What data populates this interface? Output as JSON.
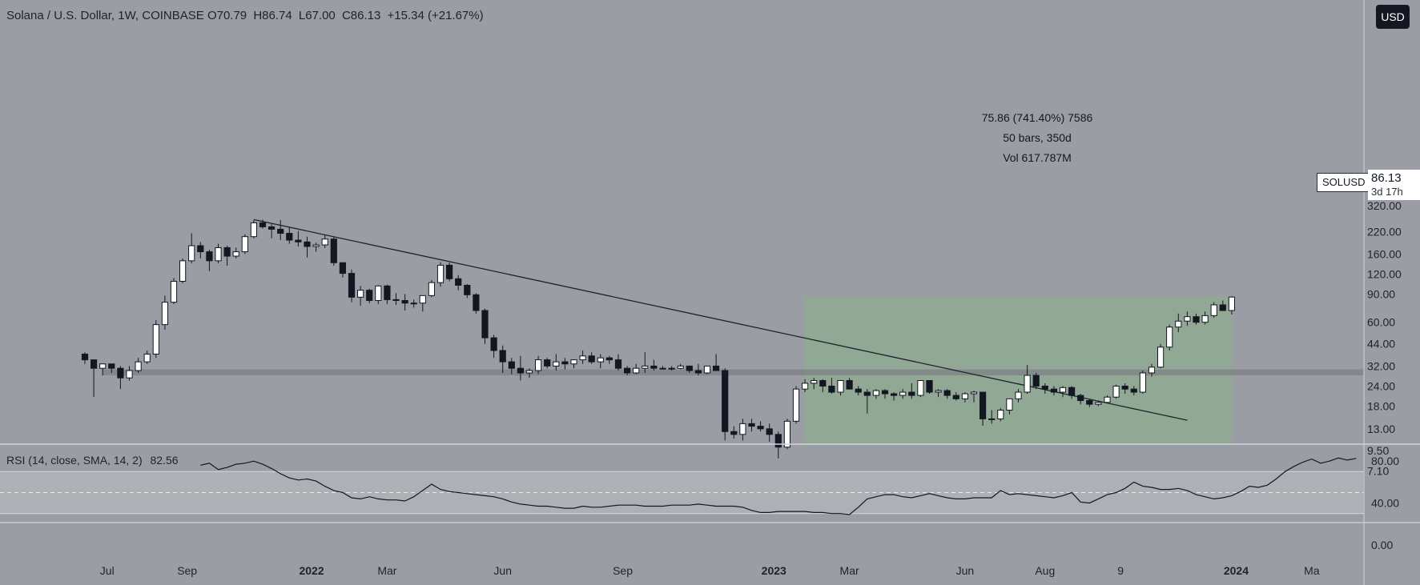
{
  "header": {
    "symbol": "Solana / U.S. Dollar, 1W, COINBASE",
    "open_label": "O",
    "open": "70.79",
    "high_label": "H",
    "high": "86.74",
    "low_label": "L",
    "low": "67.00",
    "close_label": "C",
    "close": "86.13",
    "change": "+15.34 (+21.67%)"
  },
  "currency_button": "USD",
  "measure": {
    "line1": "75.86 (741.40%) 7586",
    "line2": "50 bars, 350d",
    "line3": "Vol 617.787M"
  },
  "symbol_tag": "SOLUSD",
  "price_tag": {
    "price": "86.13",
    "countdown": "3d 17h"
  },
  "rsi_header": {
    "label": "RSI (14, close, SMA, 14, 2)",
    "value": "82.56"
  },
  "colors": {
    "background": "#9a9da3",
    "up_candle": "#ffffff",
    "down_candle": "#131722",
    "green_zone": "#8fac92",
    "support_zone": "#7f8287",
    "rsi_band": "#b4b7bc"
  },
  "chart_data": [
    {
      "type": "candlestick",
      "title": "Solana / U.S. Dollar, 1W, COINBASE",
      "y_scale": "log",
      "y_ticks": [
        "320.00",
        "220.00",
        "160.00",
        "120.00",
        "90.00",
        "60.00",
        "44.00",
        "32.00",
        "24.00",
        "18.00",
        "13.00",
        "9.50",
        "7.10"
      ],
      "y_tick_values": [
        320,
        220,
        160,
        120,
        90,
        60,
        44,
        32,
        24,
        18,
        13,
        9.5,
        7.1
      ],
      "x_ticks": [
        {
          "label": "Jul",
          "bold": false,
          "bar": 2.5
        },
        {
          "label": "Sep",
          "bold": false,
          "bar": 11.5
        },
        {
          "label": "2022",
          "bold": true,
          "bar": 25.5
        },
        {
          "label": "Mar",
          "bold": false,
          "bar": 34
        },
        {
          "label": "Jun",
          "bold": false,
          "bar": 47
        },
        {
          "label": "Sep",
          "bold": false,
          "bar": 60.5
        },
        {
          "label": "2023",
          "bold": true,
          "bar": 77.5
        },
        {
          "label": "Mar",
          "bold": false,
          "bar": 86
        },
        {
          "label": "Jun",
          "bold": false,
          "bar": 99
        },
        {
          "label": "Aug",
          "bold": false,
          "bar": 108
        },
        {
          "label": "9",
          "bold": false,
          "bar": 116.5
        },
        {
          "label": "2024",
          "bold": true,
          "bar": 129.5
        },
        {
          "label": "Ma",
          "bold": false,
          "bar": 138
        }
      ],
      "ohlc": [
        [
          38,
          39,
          33,
          35
        ],
        [
          35,
          35,
          20.5,
          31
        ],
        [
          31,
          33,
          28,
          33
        ],
        [
          33,
          33,
          29,
          31
        ],
        [
          31,
          32,
          23,
          27
        ],
        [
          27,
          32,
          26,
          30
        ],
        [
          30,
          36,
          29,
          34
        ],
        [
          34,
          40,
          33,
          38
        ],
        [
          38,
          62,
          36,
          58
        ],
        [
          58,
          88,
          54,
          80
        ],
        [
          80,
          113,
          78,
          108
        ],
        [
          108,
          150,
          105,
          145
        ],
        [
          145,
          215,
          140,
          180
        ],
        [
          180,
          190,
          150,
          165
        ],
        [
          165,
          170,
          125,
          145
        ],
        [
          145,
          185,
          140,
          175
        ],
        [
          175,
          180,
          135,
          155
        ],
        [
          155,
          175,
          150,
          165
        ],
        [
          165,
          212,
          160,
          205
        ],
        [
          205,
          260,
          200,
          250
        ],
        [
          250,
          262,
          230,
          236
        ],
        [
          236,
          245,
          200,
          228
        ],
        [
          228,
          260,
          195,
          215
        ],
        [
          215,
          235,
          185,
          195
        ],
        [
          195,
          222,
          178,
          190
        ],
        [
          190,
          205,
          152,
          178
        ],
        [
          178,
          188,
          165,
          182
        ],
        [
          182,
          210,
          174,
          198
        ],
        [
          198,
          203,
          135,
          141
        ],
        [
          141,
          142,
          114,
          121
        ],
        [
          121,
          128,
          80,
          86
        ],
        [
          86,
          101,
          76,
          95
        ],
        [
          95,
          97,
          79,
          82
        ],
        [
          82,
          102,
          78,
          101
        ],
        [
          101,
          103,
          78,
          83
        ],
        [
          83,
          91,
          77,
          82
        ],
        [
          82,
          90,
          71,
          79
        ],
        [
          79,
          83,
          74,
          79
        ],
        [
          79,
          86,
          70,
          88
        ],
        [
          88,
          110,
          86,
          106
        ],
        [
          106,
          142,
          100,
          136
        ],
        [
          136,
          141,
          108,
          112
        ],
        [
          112,
          118,
          95,
          102
        ],
        [
          102,
          104,
          85,
          89
        ],
        [
          89,
          91,
          68,
          71
        ],
        [
          71,
          73,
          44,
          48
        ],
        [
          48,
          50,
          36,
          40
        ],
        [
          40,
          43,
          29,
          34
        ],
        [
          34,
          36,
          28.5,
          31
        ],
        [
          31,
          37,
          26,
          29
        ],
        [
          29,
          31,
          27,
          30
        ],
        [
          30,
          37,
          28.5,
          35
        ],
        [
          35,
          36,
          31,
          32
        ],
        [
          32,
          38,
          30,
          34
        ],
        [
          34,
          36,
          30.5,
          33
        ],
        [
          33,
          35,
          31,
          35
        ],
        [
          35,
          40,
          33,
          37
        ],
        [
          37,
          39,
          33,
          34
        ],
        [
          34,
          38,
          31,
          36
        ],
        [
          36,
          37,
          33,
          35
        ],
        [
          35,
          38,
          30,
          31
        ],
        [
          31,
          32,
          28,
          29
        ],
        [
          29,
          33,
          28.5,
          31
        ],
        [
          31,
          39,
          29,
          32
        ],
        [
          32,
          35,
          30,
          31
        ],
        [
          31,
          32,
          30.5,
          31
        ],
        [
          31,
          32,
          30,
          31
        ],
        [
          31,
          33,
          30.5,
          32
        ],
        [
          32,
          32,
          29,
          30
        ],
        [
          30,
          33,
          28,
          29
        ],
        [
          29,
          32,
          28.5,
          32
        ],
        [
          32,
          38,
          30,
          30
        ],
        [
          30,
          31,
          11,
          12.5
        ],
        [
          12.5,
          13.5,
          11.3,
          12
        ],
        [
          12,
          15,
          11,
          14
        ],
        [
          14,
          15,
          12.5,
          13.5
        ],
        [
          13.5,
          14.5,
          12.5,
          13
        ],
        [
          13,
          14,
          10.8,
          12
        ],
        [
          12,
          12.5,
          8.5,
          10
        ],
        [
          10,
          15,
          9.7,
          14.5
        ],
        [
          14.5,
          24,
          14,
          23
        ],
        [
          23,
          26.5,
          22,
          25
        ],
        [
          25,
          27,
          23,
          26
        ],
        [
          26,
          26.5,
          22,
          24
        ],
        [
          24,
          27,
          21.5,
          22
        ],
        [
          22,
          26,
          21,
          26
        ],
        [
          26,
          27,
          23,
          23
        ],
        [
          23,
          24,
          21,
          22
        ],
        [
          22,
          23,
          16.2,
          21
        ],
        [
          21,
          23,
          20,
          22.5
        ],
        [
          22.5,
          23,
          20,
          21.5
        ],
        [
          21.5,
          22,
          19.5,
          21
        ],
        [
          21,
          23,
          20,
          22
        ],
        [
          22,
          25,
          20,
          21
        ],
        [
          21,
          26,
          20.5,
          26
        ],
        [
          26,
          26,
          21.5,
          22
        ],
        [
          22,
          23,
          20.5,
          22.5
        ],
        [
          22.5,
          23,
          20,
          21
        ],
        [
          21,
          22,
          19.5,
          20
        ],
        [
          20,
          22,
          19,
          21.5
        ],
        [
          21.5,
          22.5,
          19,
          22
        ],
        [
          22,
          22,
          13.6,
          15
        ],
        [
          15,
          17,
          14,
          15
        ],
        [
          15,
          17.5,
          14.5,
          17
        ],
        [
          17,
          20,
          16,
          20
        ],
        [
          20,
          23,
          19,
          22
        ],
        [
          22,
          32.5,
          21.5,
          28
        ],
        [
          28,
          29,
          23,
          24
        ],
        [
          24,
          25,
          21.5,
          23
        ],
        [
          23,
          24,
          21,
          22
        ],
        [
          22,
          24,
          20.5,
          23.5
        ],
        [
          23.5,
          24,
          20,
          21
        ],
        [
          21,
          21.5,
          18.5,
          19.5
        ],
        [
          19.5,
          20,
          17.8,
          18.5
        ],
        [
          18.5,
          19.5,
          18,
          19
        ],
        [
          19,
          21,
          18.8,
          20.5
        ],
        [
          20.5,
          24.5,
          20,
          24
        ],
        [
          24,
          25,
          21.5,
          23
        ],
        [
          23,
          24,
          21,
          22
        ],
        [
          22,
          30,
          21.5,
          29
        ],
        [
          29,
          33,
          27.5,
          31.5
        ],
        [
          31.5,
          44,
          31,
          42
        ],
        [
          42,
          58,
          40,
          56
        ],
        [
          56,
          68,
          52,
          61
        ],
        [
          61,
          70,
          57,
          65
        ],
        [
          65,
          68,
          58,
          60
        ],
        [
          60,
          70,
          58,
          66
        ],
        [
          66,
          80,
          64,
          77
        ],
        [
          77,
          82,
          72,
          71
        ],
        [
          71,
          87,
          67,
          86.13
        ]
      ]
    },
    {
      "type": "line",
      "title": "RSI (14, close, SMA, 14, 2)",
      "y_ticks": [
        "80.00",
        "40.00",
        "0.00"
      ],
      "y_tick_values": [
        80,
        40,
        0
      ],
      "band": [
        30,
        70
      ],
      "midline": 50,
      "rsi_start_bar": 13,
      "values": [
        76,
        78,
        72,
        74,
        77,
        78,
        80,
        77,
        73,
        68,
        64,
        62,
        63,
        61,
        56,
        52,
        50,
        45,
        44,
        46,
        44,
        43,
        43,
        42,
        46,
        52,
        58,
        53,
        51,
        50,
        49,
        48,
        47,
        46,
        44,
        41,
        39,
        38,
        37,
        37,
        36,
        35,
        35,
        37,
        36,
        36,
        37,
        38,
        38,
        38,
        37,
        37,
        37,
        38,
        38,
        38,
        39,
        38,
        37,
        37,
        37,
        36,
        33,
        31,
        31,
        32,
        32,
        32,
        32,
        31,
        31,
        30,
        30,
        29,
        36,
        44,
        46,
        48,
        48,
        46,
        45,
        47,
        49,
        47,
        45,
        44,
        44,
        45,
        45,
        45,
        52,
        48,
        49,
        48,
        47,
        46,
        45,
        47,
        50,
        41,
        40,
        44,
        48,
        50,
        54,
        60,
        56,
        55,
        53,
        53,
        54,
        52,
        48,
        46,
        44,
        45,
        47,
        51,
        56,
        55,
        57,
        63,
        70,
        75,
        79,
        82,
        78,
        80,
        83,
        81,
        82.56
      ],
      "last_value": 82.56
    }
  ],
  "trendline": {
    "from": {
      "bar": 19,
      "price": 262
    },
    "to": {
      "bar": 124,
      "price": 14.7
    }
  },
  "green_zone": {
    "from_bar": 81,
    "to_bar": 129,
    "low": 10.3,
    "high": 86.74
  },
  "support_zone": {
    "low": 28,
    "high": 30.5
  }
}
